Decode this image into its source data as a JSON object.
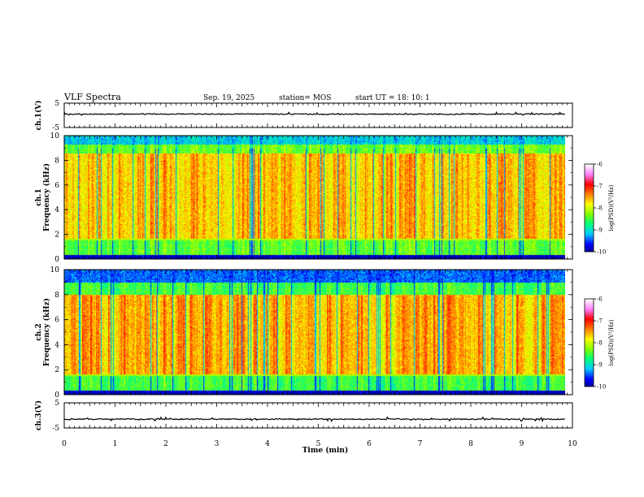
{
  "header": {
    "title": "VLF Spectra",
    "date": "Sep. 19, 2025",
    "station": "station= MOS",
    "start": "start  UT =   18: 10: 1"
  },
  "chart_data": [
    {
      "type": "line",
      "panel": "ch1-waveform",
      "ylabel": "ch.1(V)",
      "ylim": [
        -5,
        5
      ],
      "yticks": [
        "5",
        "-5"
      ],
      "baseline": 0.5,
      "grid": false
    },
    {
      "type": "heatmap",
      "panel": "ch1-spectrogram",
      "ylabel": "ch.1\nFrequency (kHz)",
      "ylim": [
        0,
        10
      ],
      "yticks": [
        "0",
        "2",
        "4",
        "6",
        "8",
        "10"
      ],
      "colorbar": {
        "range": [
          -10,
          -6
        ],
        "ticks": [
          "-6",
          "-7",
          "-8",
          "-9",
          "-10"
        ],
        "label": "log(PSD)(V²/Hz)"
      }
    },
    {
      "type": "heatmap",
      "panel": "ch2-spectrogram",
      "ylabel": "ch.2\nFrequency (kHz)",
      "ylim": [
        0,
        10
      ],
      "yticks": [
        "0",
        "2",
        "4",
        "6",
        "8",
        "10"
      ],
      "colorbar": {
        "range": [
          -10,
          -6
        ],
        "ticks": [
          "-6",
          "-7",
          "-8",
          "-9",
          "-10"
        ],
        "label": "log(PSD)(V²/Hz)"
      }
    },
    {
      "type": "line",
      "panel": "ch3-waveform",
      "ylabel": "ch.3(V)",
      "ylim": [
        -5,
        5
      ],
      "yticks": [
        "5",
        "-5"
      ],
      "baseline": -1.5,
      "grid": false
    }
  ],
  "xaxis": {
    "label": "Time  (min)",
    "range": [
      0,
      10
    ],
    "ticks": [
      "0",
      "1",
      "2",
      "3",
      "4",
      "5",
      "6",
      "7",
      "8",
      "9",
      "10"
    ],
    "data_end": 9.85
  },
  "colors": {
    "colormap": [
      "#000000",
      "#000080",
      "#0000ff",
      "#00c8ff",
      "#00ff80",
      "#80ff00",
      "#ffff00",
      "#ff8000",
      "#ff0000",
      "#ff80ff",
      "#ffffff"
    ]
  }
}
